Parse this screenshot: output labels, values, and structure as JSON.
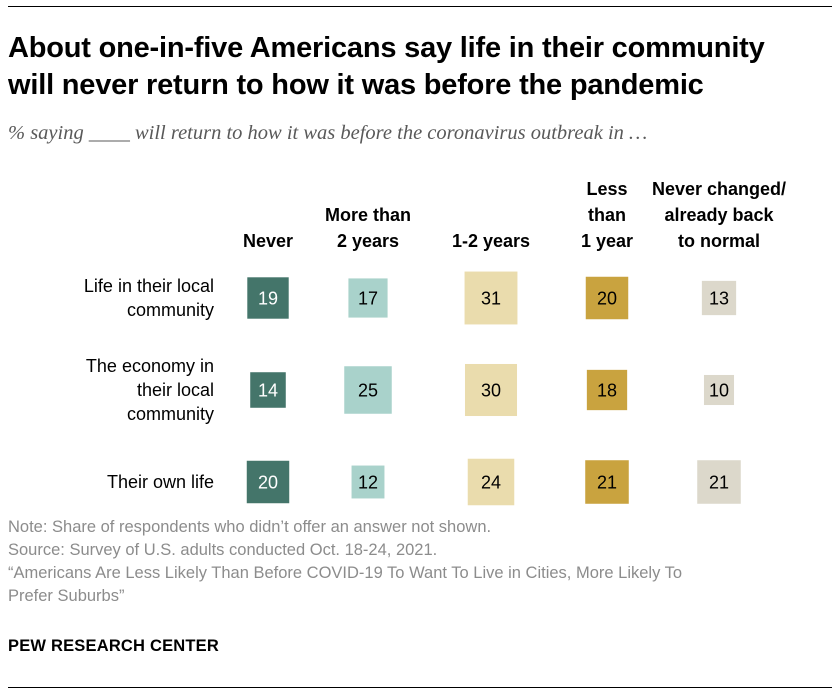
{
  "title_lines": [
    "About one-in-five Americans say life in their community",
    "will never return to how it was before the pandemic"
  ],
  "subtitle": "% saying ____ will return to how it was before the coronavirus outbreak in …",
  "chart_data": {
    "type": "table",
    "columns": [
      {
        "name": "Never",
        "label_lines": [
          "Never"
        ],
        "color": "#44756a",
        "text_color": "#ffffff"
      },
      {
        "name": "More than 2 years",
        "label_lines": [
          "More than",
          "2 years"
        ],
        "color": "#a9d2cb",
        "text_color": "#000000"
      },
      {
        "name": "1-2 years",
        "label_lines": [
          "1-2 years"
        ],
        "color": "#eadcad",
        "text_color": "#000000"
      },
      {
        "name": "Less than 1 year",
        "label_lines": [
          "Less",
          "than",
          "1 year"
        ],
        "color": "#c9a33f",
        "text_color": "#000000"
      },
      {
        "name": "Never changed/already back to normal",
        "label_lines": [
          "Never changed/",
          "already back",
          "to normal"
        ],
        "color": "#dcd8cb",
        "text_color": "#000000"
      }
    ],
    "rows": [
      {
        "label_lines": [
          "Life in their local",
          "community"
        ],
        "values": [
          19,
          17,
          31,
          20,
          13
        ]
      },
      {
        "label_lines": [
          "The economy in",
          "their local",
          "community"
        ],
        "values": [
          14,
          25,
          30,
          18,
          10
        ]
      },
      {
        "label_lines": [
          "Their own life"
        ],
        "values": [
          20,
          12,
          24,
          21,
          21
        ]
      }
    ],
    "unit": "%"
  },
  "notes": {
    "note": "Note: Share of respondents who didn’t offer an answer not shown.",
    "source": "Source: Survey of U.S. adults conducted Oct. 18-24, 2021.",
    "report_lines": [
      "“Americans Are Less Likely Than Before COVID-19 To Want To Live in Cities, More Likely To",
      "Prefer Suburbs”"
    ]
  },
  "brand": "PEW RESEARCH CENTER"
}
